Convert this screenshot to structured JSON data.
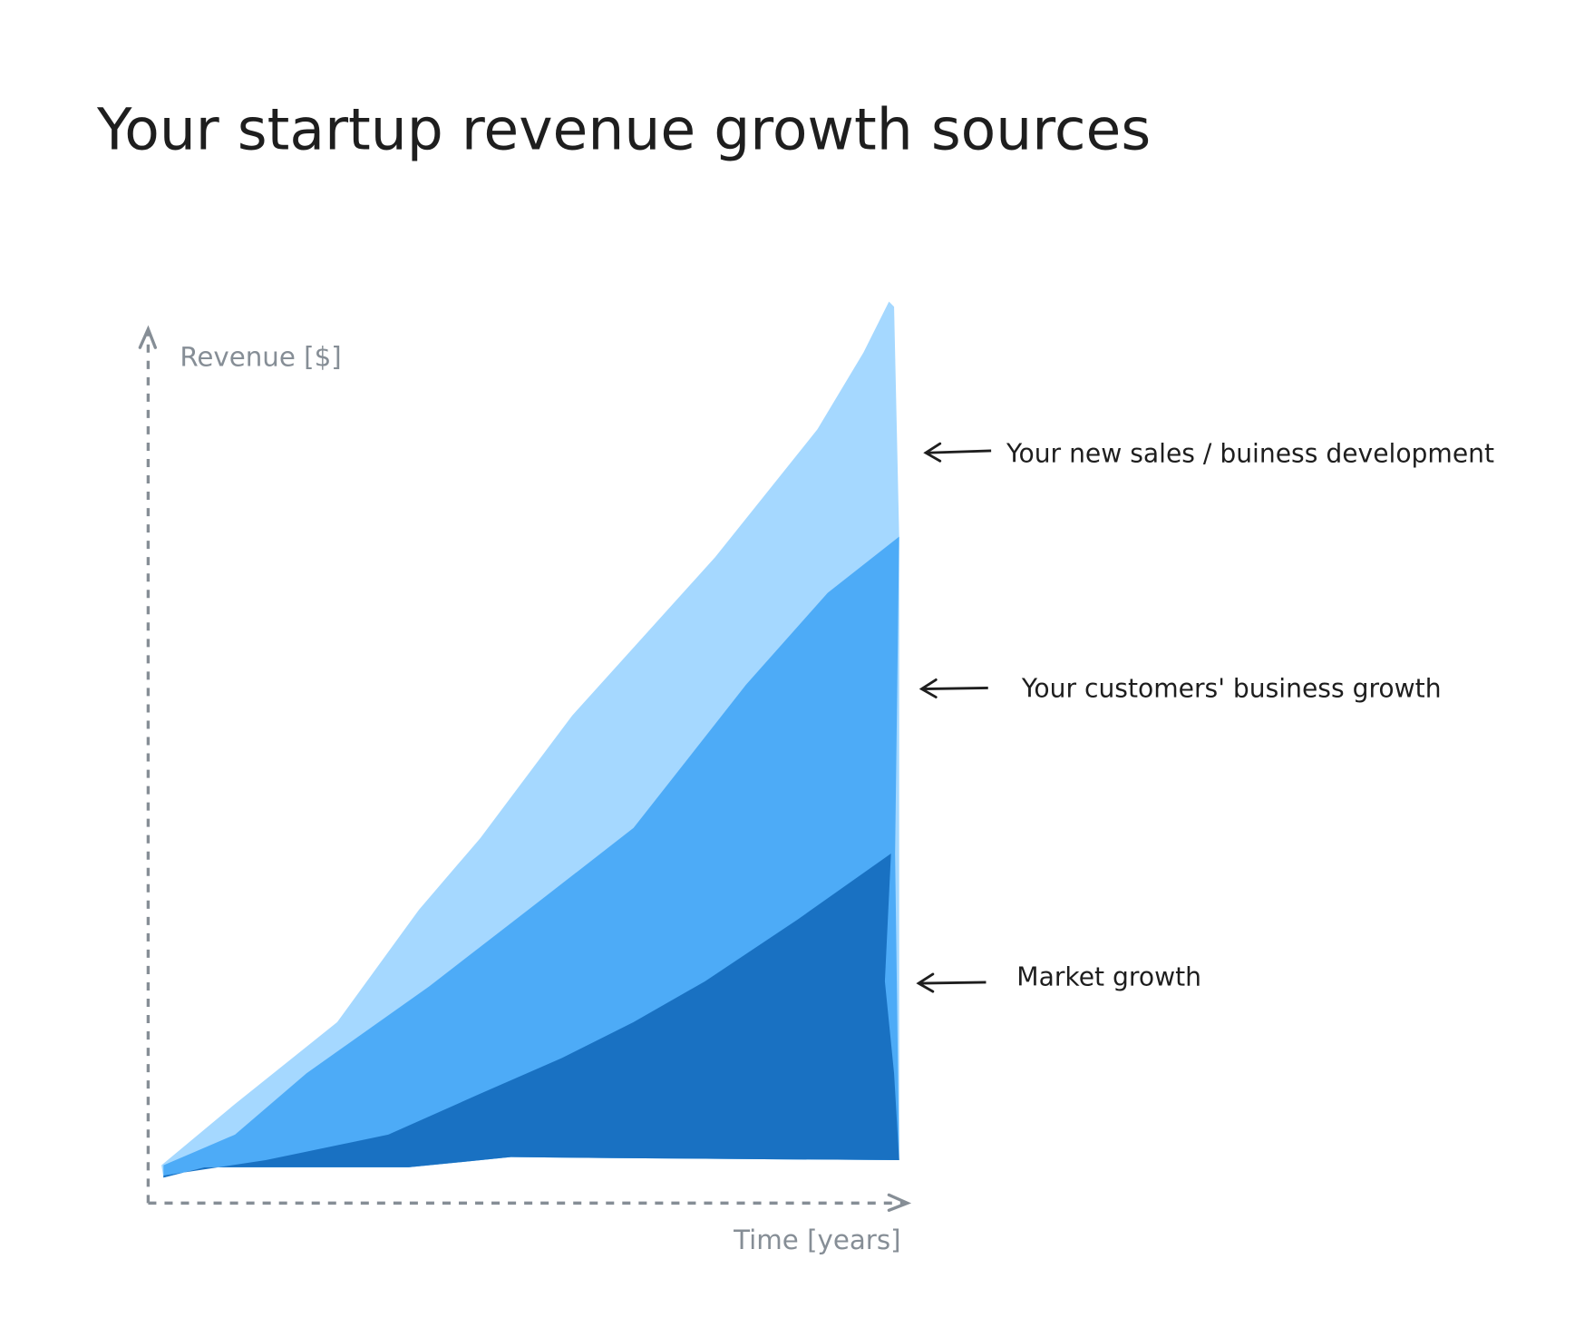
{
  "title": "Your startup revenue growth sources",
  "axes": {
    "y_label": "Revenue [$]",
    "x_label": "Time [years]"
  },
  "layers": [
    {
      "label": "Your new sales / buiness development"
    },
    {
      "label": "Your customers' business growth"
    },
    {
      "label": "Market growth"
    }
  ]
}
